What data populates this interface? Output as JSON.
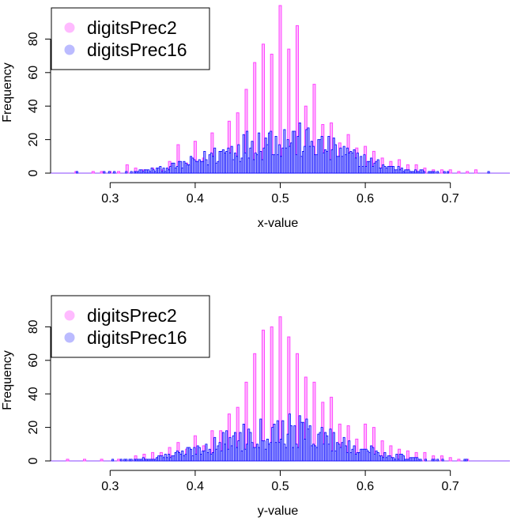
{
  "chart_data": [
    {
      "type": "bar",
      "xlabel": "x-value",
      "ylabel": "Frequency",
      "xlim": [
        0.23,
        0.77
      ],
      "ylim": [
        0,
        100
      ],
      "xticks": [
        "0.3",
        "0.4",
        "0.5",
        "0.6",
        "0.7"
      ],
      "yticks": [
        "0",
        "20",
        "40",
        "60",
        "80"
      ],
      "legend": {
        "position": "top-left",
        "entries": [
          "digitsPrec2",
          "digitsPrec16"
        ]
      },
      "series": [
        {
          "name": "digitsPrec2",
          "color": "#ff44ff",
          "fill": "#ffbbff",
          "x": [
            0.26,
            0.28,
            0.29,
            0.3,
            0.31,
            0.32,
            0.33,
            0.34,
            0.35,
            0.36,
            0.37,
            0.38,
            0.39,
            0.4,
            0.41,
            0.42,
            0.43,
            0.44,
            0.45,
            0.46,
            0.47,
            0.48,
            0.49,
            0.5,
            0.51,
            0.52,
            0.53,
            0.54,
            0.55,
            0.56,
            0.57,
            0.58,
            0.59,
            0.6,
            0.61,
            0.62,
            0.63,
            0.64,
            0.65,
            0.66,
            0.67,
            0.68,
            0.69,
            0.7,
            0.71,
            0.72,
            0.73
          ],
          "values": [
            1,
            1,
            1,
            1,
            1,
            5,
            3,
            2,
            3,
            2,
            7,
            17,
            6,
            19,
            9,
            24,
            12,
            31,
            36,
            50,
            66,
            77,
            71,
            100,
            74,
            88,
            40,
            53,
            29,
            30,
            18,
            23,
            15,
            16,
            13,
            9,
            7,
            8,
            5,
            5,
            3,
            2,
            2,
            2,
            1,
            1,
            2
          ]
        },
        {
          "name": "digitsPrec16",
          "color": "#0000ff",
          "fill": "#bbbbff",
          "center": 0.5,
          "spread": 0.07,
          "peak": 21,
          "bins": [
            0.23,
            0.77
          ]
        }
      ]
    },
    {
      "type": "bar",
      "xlabel": "y-value",
      "ylabel": "Frequency",
      "xlim": [
        0.23,
        0.77
      ],
      "ylim": [
        0,
        100
      ],
      "xticks": [
        "0.3",
        "0.4",
        "0.5",
        "0.6",
        "0.7"
      ],
      "yticks": [
        "0",
        "20",
        "40",
        "60",
        "80"
      ],
      "legend": {
        "position": "top-left",
        "entries": [
          "digitsPrec2",
          "digitsPrec16"
        ]
      },
      "series": [
        {
          "name": "digitsPrec2",
          "color": "#ff44ff",
          "fill": "#ffbbff",
          "x": [
            0.25,
            0.27,
            0.29,
            0.31,
            0.33,
            0.34,
            0.35,
            0.36,
            0.37,
            0.38,
            0.39,
            0.4,
            0.41,
            0.42,
            0.43,
            0.44,
            0.45,
            0.46,
            0.47,
            0.48,
            0.49,
            0.5,
            0.51,
            0.52,
            0.53,
            0.54,
            0.55,
            0.56,
            0.57,
            0.58,
            0.59,
            0.6,
            0.61,
            0.62,
            0.63,
            0.64,
            0.65,
            0.66,
            0.67,
            0.68,
            0.69,
            0.7,
            0.71,
            0.72
          ],
          "values": [
            1,
            1,
            1,
            1,
            3,
            4,
            5,
            5,
            8,
            11,
            7,
            15,
            9,
            18,
            18,
            28,
            32,
            47,
            64,
            78,
            80,
            86,
            74,
            64,
            50,
            47,
            35,
            38,
            22,
            21,
            13,
            22,
            20,
            12,
            9,
            7,
            6,
            5,
            5,
            3,
            3,
            2,
            1,
            1
          ]
        },
        {
          "name": "digitsPrec16",
          "color": "#0000ff",
          "fill": "#bbbbff",
          "center": 0.5,
          "spread": 0.07,
          "peak": 19,
          "bins": [
            0.23,
            0.77
          ]
        }
      ]
    }
  ]
}
